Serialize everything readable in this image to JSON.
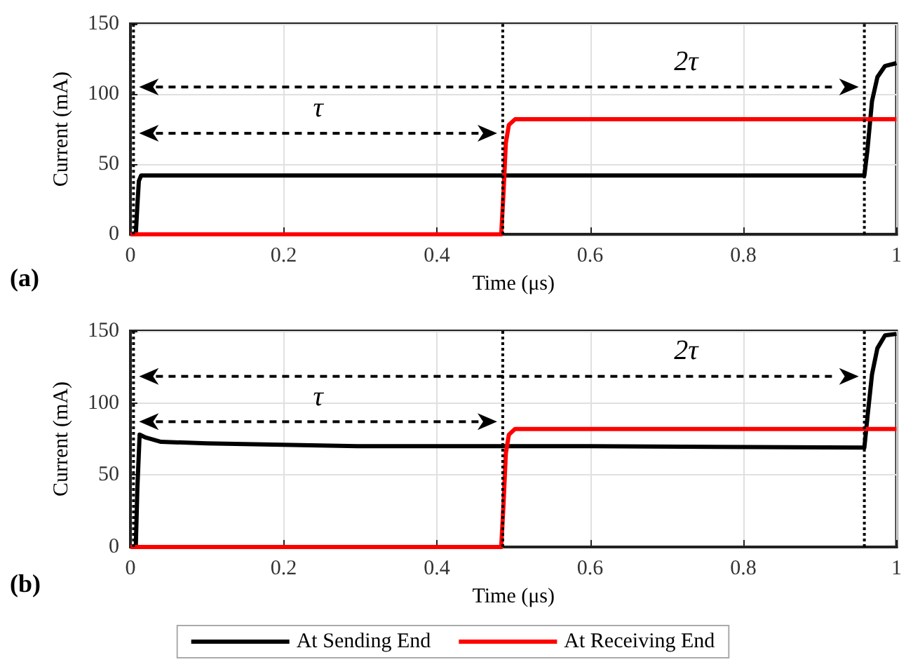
{
  "chart_data": [
    {
      "type": "line",
      "title": "(a)",
      "xlabel": "Time (μs)",
      "ylabel": "Current (mA)",
      "xlim": [
        0,
        1
      ],
      "xticks": [
        0,
        0.2,
        0.4,
        0.6,
        0.8,
        1
      ],
      "ylim": [
        0,
        150
      ],
      "yticks": [
        0,
        50,
        100,
        150
      ],
      "grid": true,
      "legend": false,
      "marker": "none",
      "line_style": "solid",
      "series": [
        {
          "color": "#000000",
          "x": [
            0,
            0.007,
            0.009,
            0.011,
            0.014,
            0.958,
            0.962,
            0.968,
            0.975,
            0.985,
            1
          ],
          "values": [
            0,
            0,
            20,
            38,
            42,
            42,
            60,
            95,
            112,
            120,
            122
          ]
        },
        {
          "color": "#ff0000",
          "x": [
            0,
            0.484,
            0.487,
            0.49,
            0.494,
            0.502,
            1
          ],
          "values": [
            0,
            0,
            30,
            65,
            78,
            82,
            82
          ]
        }
      ],
      "ref_lines": [
        {
          "axis": "x",
          "value": 0.004,
          "line_style": "dotted",
          "color": "#000000"
        },
        {
          "axis": "x",
          "value": 0.486,
          "line_style": "dotted",
          "color": "#000000"
        },
        {
          "axis": "x",
          "value": 0.958,
          "line_style": "dotted",
          "color": "#000000"
        }
      ],
      "annotations": [
        "τ",
        "2τ"
      ]
    },
    {
      "type": "line",
      "title": "(b)",
      "xlabel": "Time (μs)",
      "ylabel": "Current (mA)",
      "xlim": [
        0,
        1
      ],
      "xticks": [
        0,
        0.2,
        0.4,
        0.6,
        0.8,
        1
      ],
      "ylim": [
        0,
        150
      ],
      "yticks": [
        0,
        50,
        100,
        150
      ],
      "grid": true,
      "legend": "bottom",
      "marker": "none",
      "line_style": "solid",
      "series": [
        {
          "name": "At Sending End",
          "color": "#000000",
          "x": [
            0,
            0.007,
            0.009,
            0.012,
            0.02,
            0.04,
            0.1,
            0.3,
            0.6,
            0.958,
            0.962,
            0.968,
            0.975,
            0.985,
            1
          ],
          "values": [
            0,
            0,
            40,
            78,
            76,
            73,
            72,
            70,
            70,
            69,
            90,
            120,
            138,
            147,
            148
          ]
        },
        {
          "name": "At Receiving End",
          "color": "#ff0000",
          "x": [
            0,
            0.484,
            0.487,
            0.49,
            0.494,
            0.502,
            1
          ],
          "values": [
            0,
            0,
            30,
            65,
            78,
            82,
            82
          ]
        }
      ],
      "ref_lines": [
        {
          "axis": "x",
          "value": 0.004,
          "line_style": "dotted",
          "color": "#000000"
        },
        {
          "axis": "x",
          "value": 0.486,
          "line_style": "dotted",
          "color": "#000000"
        },
        {
          "axis": "x",
          "value": 0.958,
          "line_style": "dotted",
          "color": "#000000"
        }
      ],
      "annotations": [
        "τ",
        "2τ"
      ]
    }
  ]
}
